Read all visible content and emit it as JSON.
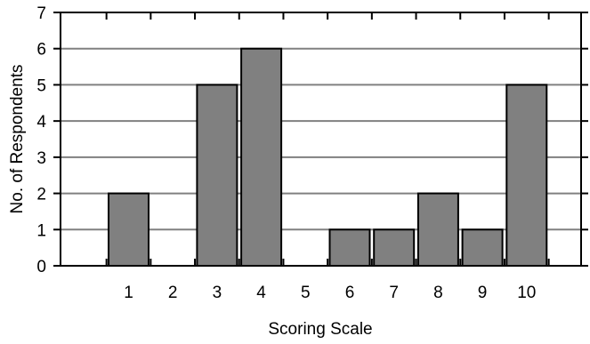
{
  "chart_data": {
    "type": "bar",
    "categories": [
      "1",
      "2",
      "3",
      "4",
      "5",
      "6",
      "7",
      "8",
      "9",
      "10"
    ],
    "values": [
      2,
      0,
      5,
      6,
      0,
      1,
      1,
      2,
      1,
      5
    ],
    "title": "",
    "xlabel": "Scoring Scale",
    "ylabel": "No. of Respondents",
    "ylim": [
      0,
      7
    ],
    "yticks": [
      "0",
      "1",
      "2",
      "3",
      "4",
      "5",
      "6",
      "7"
    ],
    "grid": true,
    "bar_color": "#808080",
    "grid_color": "#808080"
  }
}
